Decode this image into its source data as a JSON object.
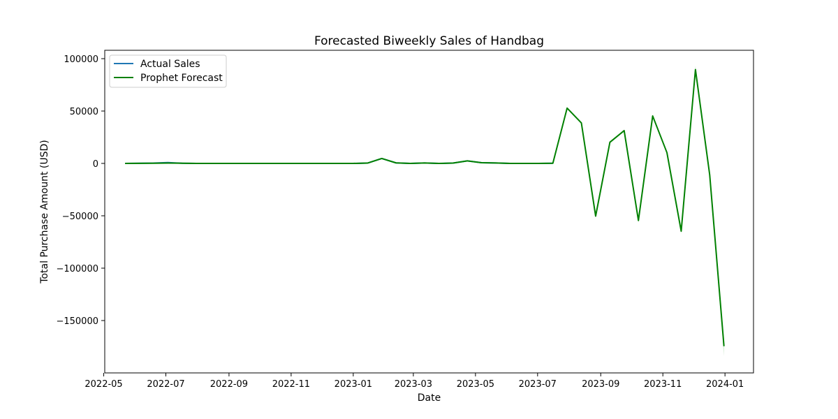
{
  "chart_data": {
    "type": "line",
    "title": "Forecasted Biweekly Sales of Handbag",
    "xlabel": "Date",
    "ylabel": "Total Purchase Amount (USD)",
    "ylim": [
      -200000,
      108000
    ],
    "xlim": [
      "2022-05-02",
      "2024-01-29"
    ],
    "x_ticks": [
      "2022-05",
      "2022-07",
      "2022-09",
      "2022-11",
      "2023-01",
      "2023-03",
      "2023-05",
      "2023-07",
      "2023-09",
      "2023-11",
      "2024-01"
    ],
    "y_ticks": [
      100000,
      50000,
      0,
      -50000,
      -100000,
      -150000
    ],
    "y_tick_labels": [
      "100000",
      "50000",
      "0",
      "−50000",
      "−100000",
      "−150000"
    ],
    "legend": {
      "position": "upper-left",
      "entries": [
        "Actual Sales",
        "Prophet Forecast"
      ]
    },
    "colors": {
      "actual": "#1f77b4",
      "forecast": "#008000",
      "band": "#a9d8a9"
    },
    "series": [
      {
        "name": "Actual Sales",
        "color": "#1f77b4",
        "x": [
          "2022-05-22",
          "2022-06-05",
          "2022-06-19",
          "2022-07-03",
          "2022-07-17",
          "2022-07-31",
          "2022-08-14",
          "2022-08-28",
          "2022-09-11",
          "2022-09-25",
          "2022-10-09",
          "2022-10-23",
          "2022-11-06",
          "2022-11-20",
          "2022-12-04",
          "2022-12-18",
          "2023-01-01",
          "2023-01-15",
          "2023-01-29",
          "2023-02-12",
          "2023-02-26",
          "2023-03-12",
          "2023-03-26",
          "2023-04-09",
          "2023-04-23",
          "2023-05-07",
          "2023-05-21",
          "2023-06-04",
          "2023-06-18",
          "2023-07-02",
          "2023-07-16"
        ],
        "values": [
          0,
          200,
          300,
          800,
          200,
          0,
          0,
          0,
          0,
          0,
          0,
          0,
          0,
          0,
          0,
          0,
          0,
          300,
          4700,
          500,
          0,
          400,
          0,
          300,
          2400,
          700,
          400,
          0,
          0,
          0,
          200
        ]
      },
      {
        "name": "Prophet Forecast",
        "color": "#008000",
        "x": [
          "2022-05-22",
          "2022-06-05",
          "2022-06-19",
          "2022-07-03",
          "2022-07-17",
          "2022-07-31",
          "2022-08-14",
          "2022-08-28",
          "2022-09-11",
          "2022-09-25",
          "2022-10-09",
          "2022-10-23",
          "2022-11-06",
          "2022-11-20",
          "2022-12-04",
          "2022-12-18",
          "2023-01-01",
          "2023-01-15",
          "2023-01-29",
          "2023-02-12",
          "2023-02-26",
          "2023-03-12",
          "2023-03-26",
          "2023-04-09",
          "2023-04-23",
          "2023-05-07",
          "2023-05-21",
          "2023-06-04",
          "2023-06-18",
          "2023-07-02",
          "2023-07-16",
          "2023-07-30",
          "2023-08-13",
          "2023-08-27",
          "2023-09-10",
          "2023-09-24",
          "2023-10-08",
          "2023-10-22",
          "2023-11-05",
          "2023-11-19",
          "2023-12-03",
          "2023-12-17",
          "2023-12-31"
        ],
        "values": [
          0,
          100,
          200,
          300,
          200,
          0,
          0,
          0,
          0,
          0,
          0,
          0,
          0,
          0,
          0,
          0,
          0,
          300,
          4700,
          500,
          0,
          400,
          0,
          300,
          2400,
          700,
          400,
          0,
          0,
          0,
          200,
          52800,
          38600,
          -50300,
          20200,
          31300,
          -54500,
          45300,
          10300,
          -64700,
          89600,
          -11000,
          -174500
        ],
        "upper": [
          500,
          600,
          700,
          800,
          700,
          500,
          500,
          500,
          500,
          500,
          500,
          500,
          500,
          500,
          500,
          500,
          500,
          800,
          5200,
          1000,
          500,
          900,
          500,
          800,
          2900,
          1200,
          900,
          500,
          500,
          500,
          700,
          53600,
          39400,
          -49000,
          21200,
          32300,
          -53000,
          46300,
          11300,
          -62500,
          93000,
          -9000,
          -168000
        ],
        "lower": [
          -500,
          -400,
          -300,
          -200,
          -300,
          -500,
          -500,
          -500,
          -500,
          -500,
          -500,
          -500,
          -500,
          -500,
          -500,
          -500,
          -500,
          -200,
          4200,
          0,
          -500,
          -100,
          -500,
          -200,
          1900,
          200,
          -100,
          -500,
          -500,
          -500,
          -300,
          52000,
          37800,
          -51600,
          19200,
          30300,
          -56000,
          44300,
          9300,
          -67000,
          86500,
          -13000,
          -184000
        ]
      }
    ]
  }
}
